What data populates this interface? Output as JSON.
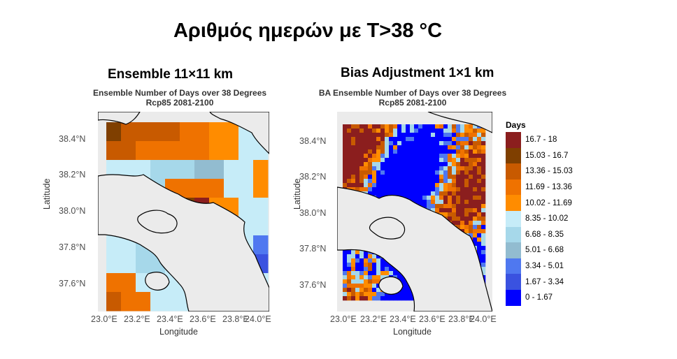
{
  "slide_title": "Αριθμός ημερών με T>38 °C",
  "left": {
    "heading": "Ensemble 11×11 km",
    "plot_title_1": "Ensemble Number of Days over 38 Degrees",
    "plot_title_2": "Rcp85 2081-2100"
  },
  "right": {
    "heading": "Bias Adjustment 1×1 km",
    "plot_title_1": "BA Ensemble Number of Days over 38 Degrees",
    "plot_title_2": "Rcp85 2081-2100"
  },
  "axes": {
    "ylabel": "Latitude",
    "xlabel": "Longitude",
    "y_ticks": [
      "38.4°N",
      "38.2°N",
      "38.0°N",
      "37.8°N",
      "37.6°N"
    ],
    "x_ticks": [
      "23.0°E",
      "23.2°E",
      "23.4°E",
      "23.6°E",
      "23.8°E",
      "24.0°E"
    ]
  },
  "legend": {
    "title": "Days",
    "items": [
      {
        "label": "16.7 - 18",
        "color": "#8b1e1e"
      },
      {
        "label": "15.03 - 16.7",
        "color": "#7f3f00"
      },
      {
        "label": "13.36 - 15.03",
        "color": "#c85a00"
      },
      {
        "label": "11.69 - 13.36",
        "color": "#ef7200"
      },
      {
        "label": "10.02 - 11.69",
        "color": "#ff8c00"
      },
      {
        "label": "8.35 - 10.02",
        "color": "#c6ecf8"
      },
      {
        "label": "6.68 - 8.35",
        "color": "#a6d8ea"
      },
      {
        "label": "5.01 - 6.68",
        "color": "#92bcd0"
      },
      {
        "label": "3.34 - 5.01",
        "color": "#4f78f0"
      },
      {
        "label": "1.67 - 3.34",
        "color": "#3a52e0"
      },
      {
        "label": "0 - 1.67",
        "color": "#0000ff"
      }
    ]
  },
  "colors": {
    "land_bg": "#ebebeb",
    "coast": "#000000"
  }
}
